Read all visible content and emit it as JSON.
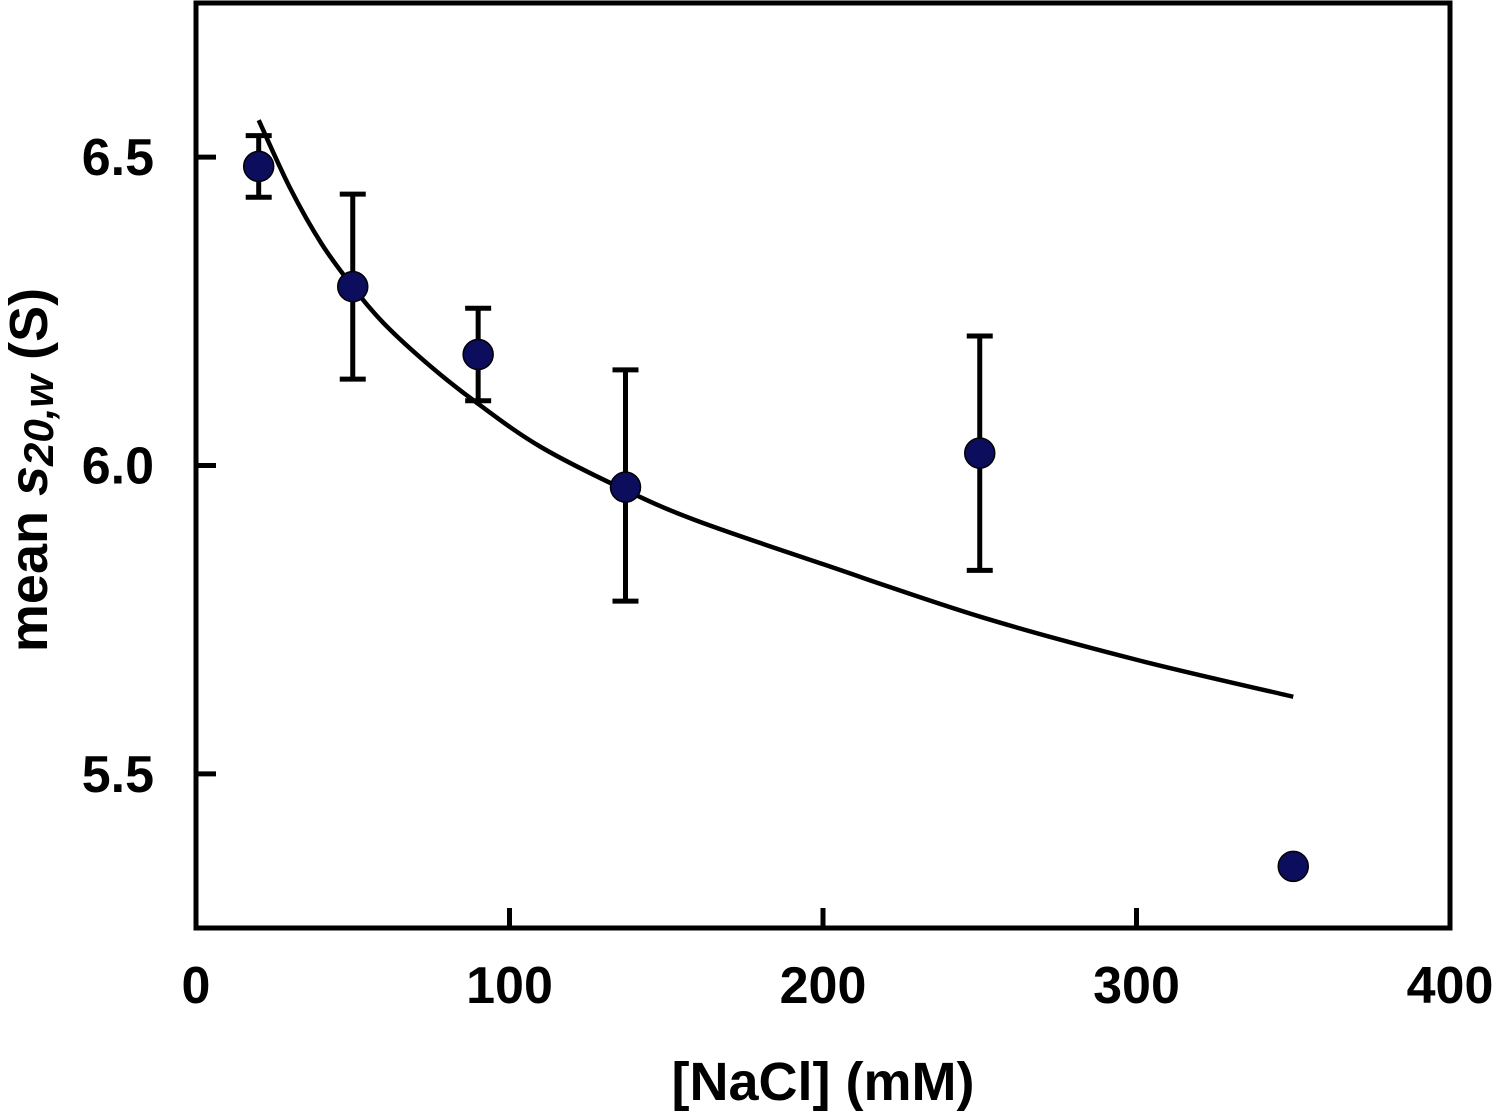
{
  "chart_data": {
    "type": "scatter",
    "xlabel": "[NaCl] (mM)",
    "ylabel": {
      "prefix": "mean ",
      "symbol": "s",
      "subscript": "20,w",
      "suffix": " (S)"
    },
    "xlim": [
      0,
      400
    ],
    "ylim": [
      5.25,
      6.75
    ],
    "x_ticks": [
      0,
      100,
      200,
      300,
      400
    ],
    "x_tick_labels": [
      "0",
      "100",
      "200",
      "300",
      "400"
    ],
    "y_ticks": [
      5.5,
      6.0,
      6.5
    ],
    "y_tick_labels": [
      "5.5",
      "6.0",
      "6.5"
    ],
    "grid": false,
    "legend": "none",
    "series": [
      {
        "kind": "points",
        "marker_color": "#0d0d5e",
        "points": [
          {
            "x": 20,
            "y": 6.485,
            "err_low": 6.435,
            "err_high": 6.535
          },
          {
            "x": 50,
            "y": 6.29,
            "err_low": 6.14,
            "err_high": 6.44
          },
          {
            "x": 90,
            "y": 6.18,
            "err_low": 6.105,
            "err_high": 6.255
          },
          {
            "x": 137,
            "y": 5.965,
            "err_low": 5.78,
            "err_high": 6.155
          },
          {
            "x": 250,
            "y": 6.02,
            "err_low": 5.83,
            "err_high": 6.21
          },
          {
            "x": 350,
            "y": 5.35
          }
        ]
      },
      {
        "kind": "fit-curve",
        "line_color": "#000000",
        "x": [
          20,
          30,
          40,
          50,
          60,
          75,
          90,
          110,
          137,
          160,
          200,
          250,
          300,
          350
        ],
        "y": [
          6.56,
          6.45,
          6.36,
          6.29,
          6.23,
          6.16,
          6.1,
          6.03,
          5.96,
          5.91,
          5.84,
          5.755,
          5.685,
          5.625
        ]
      }
    ]
  }
}
